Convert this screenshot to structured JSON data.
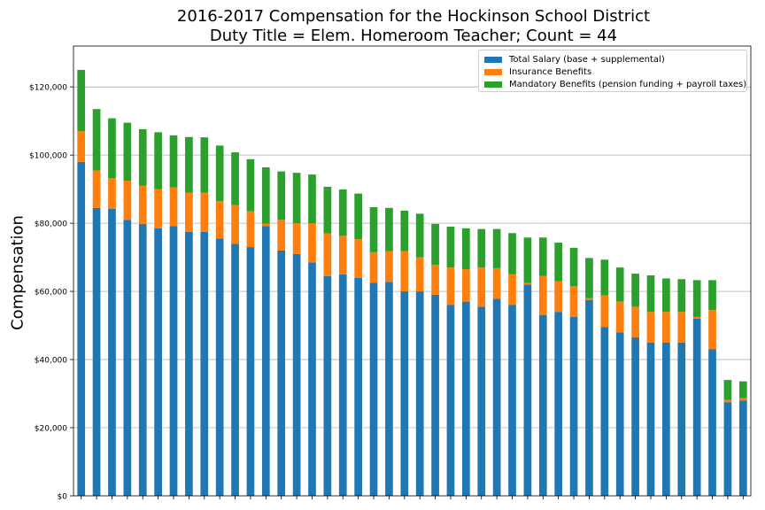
{
  "chart_data": {
    "type": "bar",
    "stacked": true,
    "title": "2016-2017 Compensation for the Hockinson School District",
    "subtitle": "Duty Title = Elem. Homeroom Teacher; Count = 44",
    "xlabel": "",
    "ylabel": "Compensation",
    "ylim": [
      0,
      132000
    ],
    "yticks": [
      0,
      20000,
      40000,
      60000,
      80000,
      100000,
      120000
    ],
    "ytick_labels": [
      "$0",
      "$20,000",
      "$40,000",
      "$60,000",
      "$80,000",
      "$100,000",
      "$120,000"
    ],
    "grid": "horizontal",
    "legend_position": "top-right",
    "series": [
      {
        "name": "Total Salary (base + supplemental)",
        "color": "#1f77b4",
        "values": [
          98000,
          84500,
          84200,
          81000,
          79800,
          78500,
          79200,
          77500,
          77500,
          75500,
          74000,
          73000,
          79200,
          72000,
          71000,
          68500,
          64500,
          65000,
          64000,
          62500,
          62800,
          60000,
          60000,
          59000,
          56000,
          57000,
          55500,
          57800,
          56000,
          62000,
          53000,
          54000,
          52500,
          57500,
          49500,
          48000,
          46500,
          45000,
          45000,
          45000,
          52000,
          43000,
          27500,
          28000
        ]
      },
      {
        "name": "Insurance Benefits",
        "color": "#ff7f0e",
        "values": [
          9000,
          11000,
          9000,
          11500,
          11200,
          11500,
          11300,
          11500,
          11500,
          11000,
          11300,
          10500,
          700,
          9000,
          9000,
          11500,
          12500,
          11300,
          11300,
          9000,
          9000,
          11800,
          10000,
          8800,
          11000,
          9500,
          11500,
          9000,
          9000,
          500,
          11500,
          9000,
          9000,
          500,
          9300,
          9000,
          9000,
          9000,
          9000,
          9000,
          500,
          11500,
          700,
          700
        ]
      },
      {
        "name": "Mandatory Benefits (pension funding + payroll taxes)",
        "color": "#2ca02c",
        "values": [
          18000,
          18000,
          17600,
          17000,
          16600,
          16700,
          15300,
          16300,
          16200,
          16300,
          15500,
          15300,
          16500,
          14200,
          14800,
          14300,
          13700,
          13600,
          13400,
          13200,
          12700,
          11900,
          12800,
          12000,
          12000,
          12000,
          11300,
          11500,
          12100,
          13300,
          11300,
          11300,
          11300,
          11800,
          10500,
          10000,
          9700,
          10700,
          9800,
          9600,
          10800,
          8800,
          5800,
          4900
        ]
      }
    ]
  }
}
